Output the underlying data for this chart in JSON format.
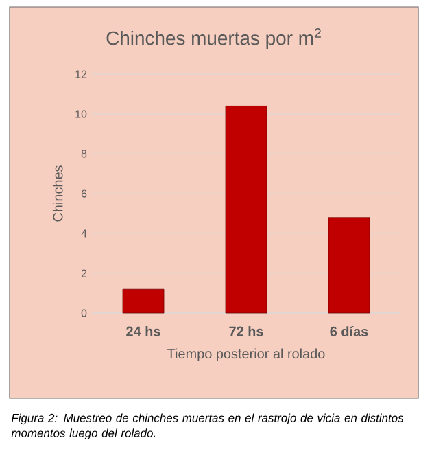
{
  "chart_data": {
    "type": "bar",
    "title": "Chinches muertas por m$^{2}$",
    "categories": [
      "24 hs",
      "72 hs",
      "6 días"
    ],
    "values": [
      1.2,
      10.4,
      4.8
    ],
    "color": "#c00000",
    "ylim": [
      0,
      12
    ],
    "yticks": [
      0,
      2,
      4,
      6,
      8,
      10,
      12
    ],
    "grid": "y",
    "xlabel": "Tiempo posterior al rolado",
    "ylabel": "Chinches",
    "annotations": [
      "Figura 2: Muestreo de chinches muertas en el rastrojo de vicia en distintos momentos luego del rolado."
    ]
  }
}
